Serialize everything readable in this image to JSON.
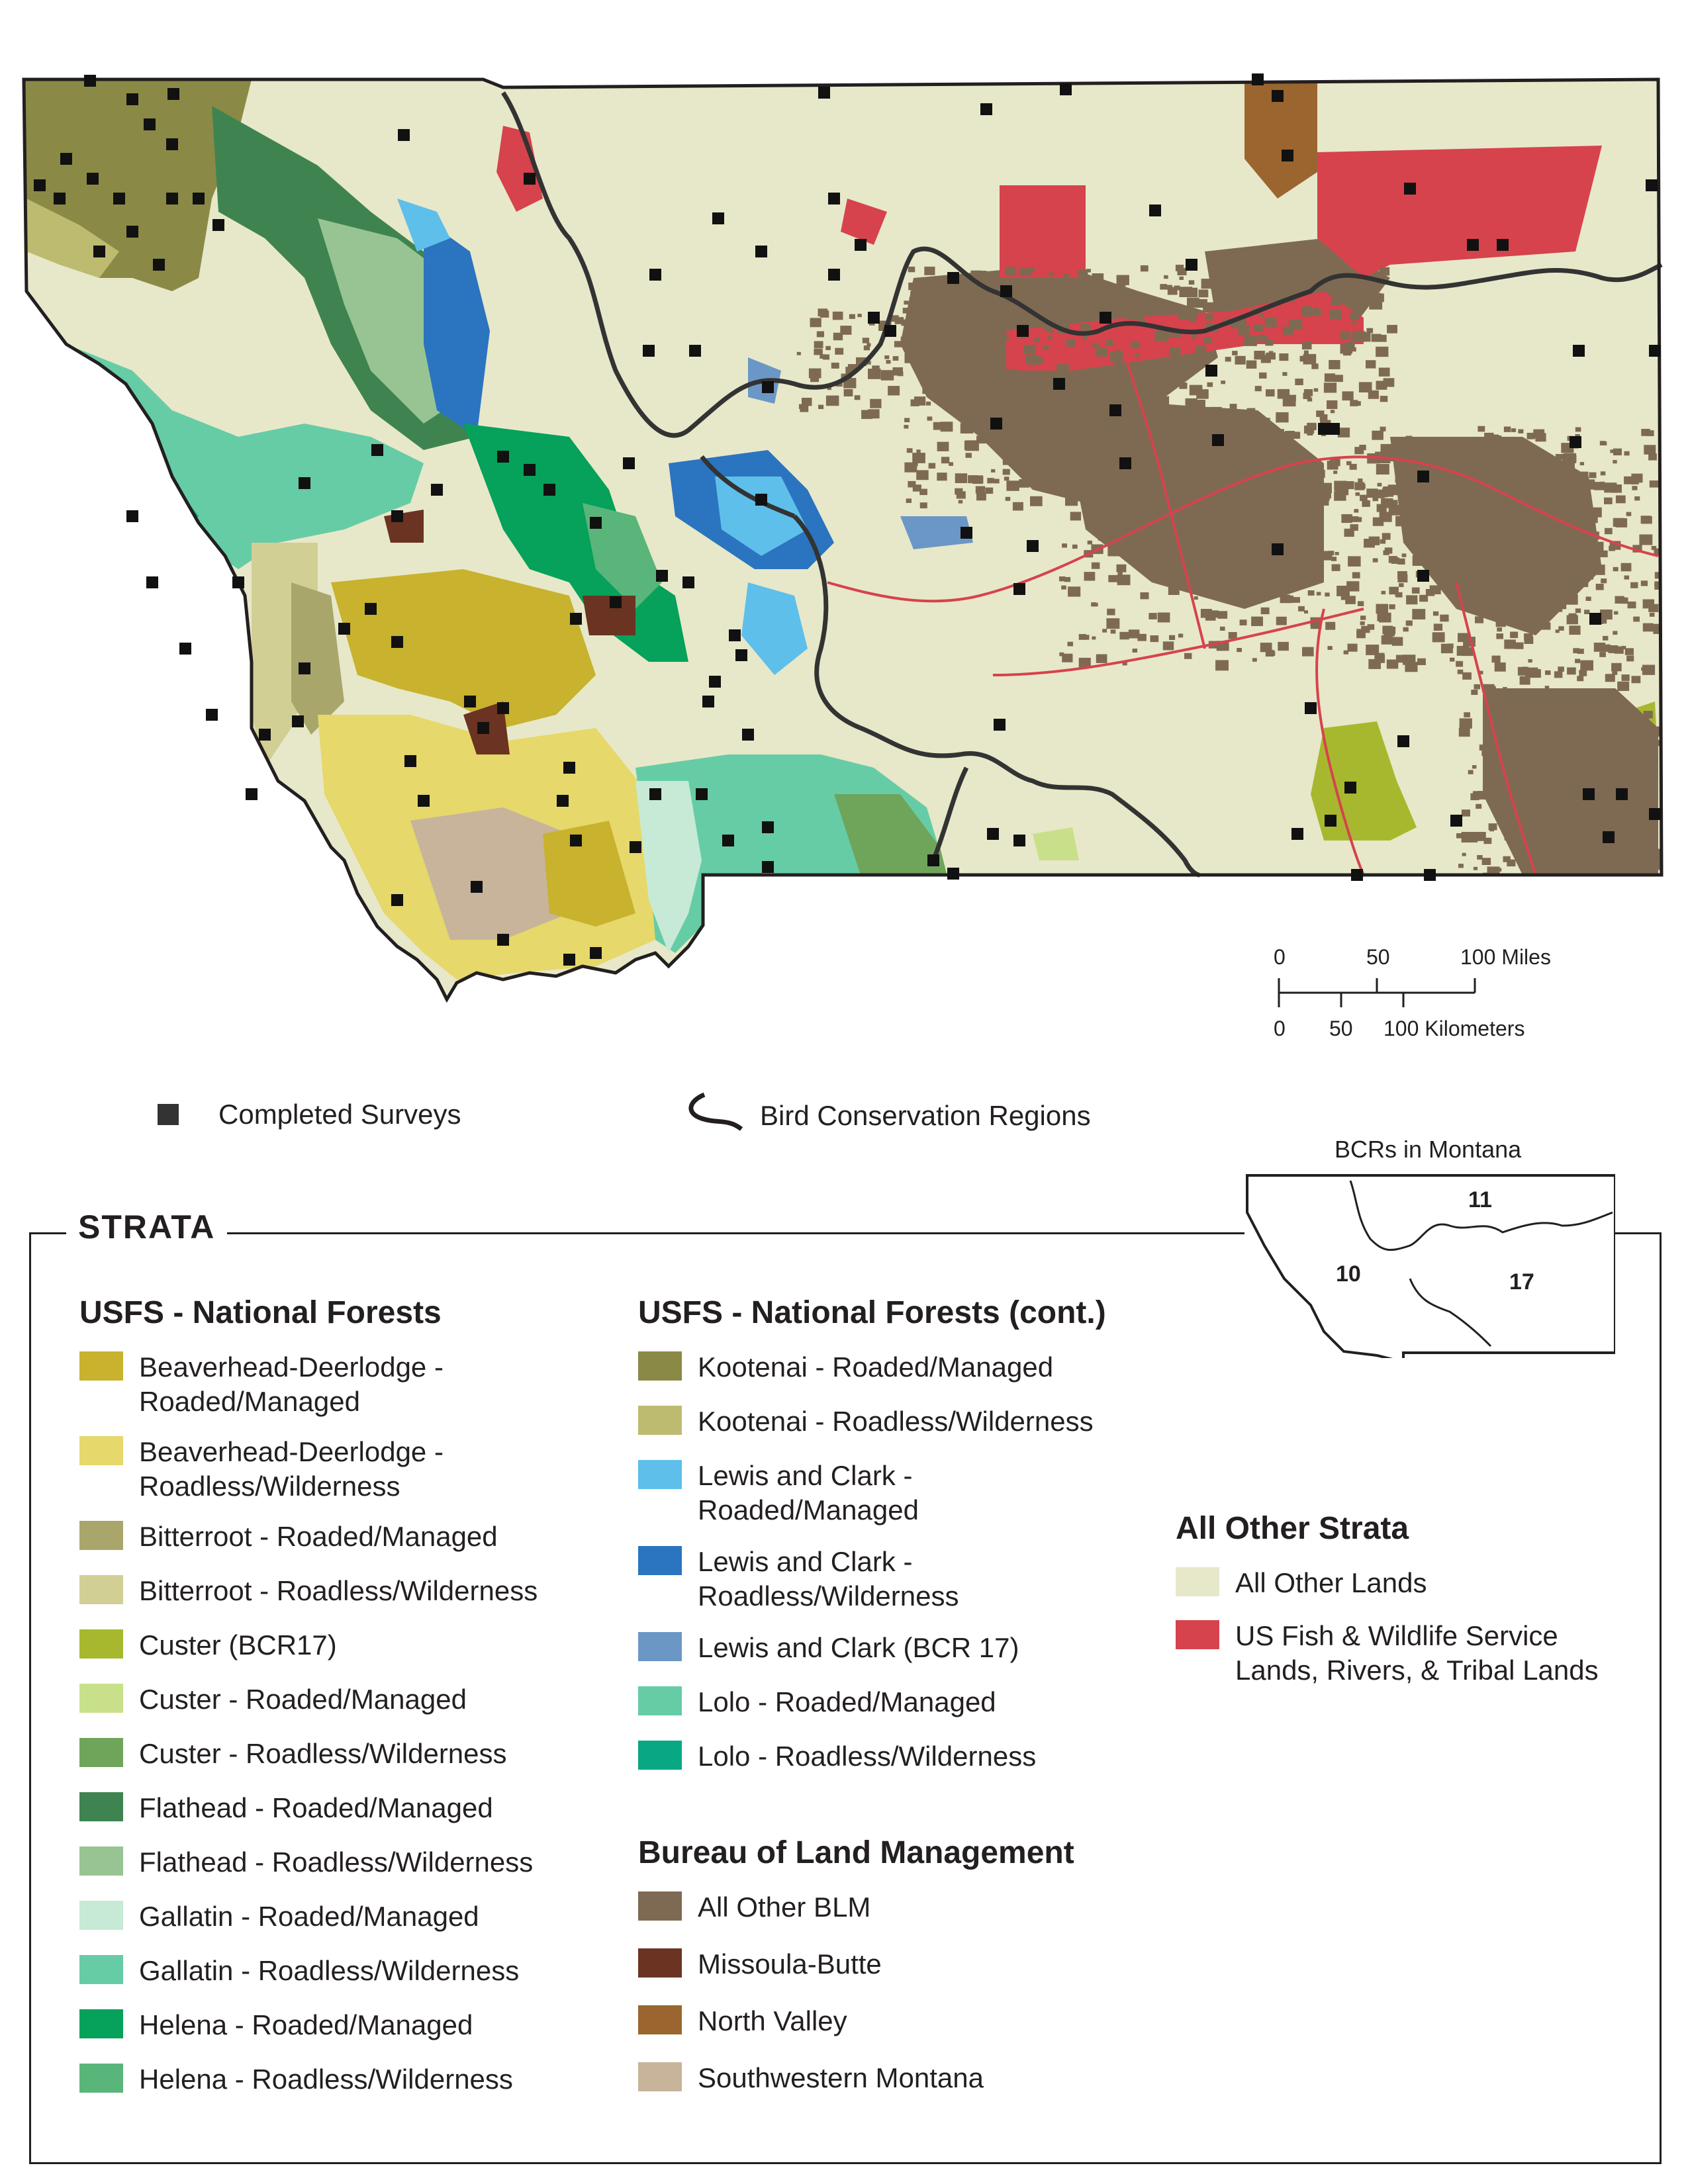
{
  "scale_bar": {
    "miles_ticks": [
      "0",
      "50",
      "100 Miles"
    ],
    "km_ticks": [
      "0",
      "50",
      "100 Kilometers"
    ]
  },
  "top_legend": {
    "surveys_label": "Completed Surveys",
    "bcr_label": "Bird Conservation Regions"
  },
  "strata": {
    "title": "STRATA",
    "usfs_heading": "USFS - National Forests",
    "usfs_items": [
      {
        "label_lines": [
          "Beaverhead-Deerlodge -",
          "Roaded/Managed"
        ],
        "color": "#c8b22e"
      },
      {
        "label_lines": [
          "Beaverhead-Deerlodge -",
          "Roadless/Wilderness"
        ],
        "color": "#e6d86a"
      },
      {
        "label_lines": [
          "Bitterroot - Roaded/Managed"
        ],
        "color": "#a9a66c"
      },
      {
        "label_lines": [
          "Bitterroot - Roadless/Wilderness"
        ],
        "color": "#d2cf95"
      },
      {
        "label_lines": [
          "Custer (BCR17)"
        ],
        "color": "#a8b82e"
      },
      {
        "label_lines": [
          "Custer - Roaded/Managed"
        ],
        "color": "#c8e08a"
      },
      {
        "label_lines": [
          "Custer - Roadless/Wilderness"
        ],
        "color": "#6fa55a"
      },
      {
        "label_lines": [
          "Flathead - Roaded/Managed"
        ],
        "color": "#3f8450"
      },
      {
        "label_lines": [
          "Flathead - Roadless/Wilderness"
        ],
        "color": "#98c493"
      },
      {
        "label_lines": [
          "Gallatin - Roaded/Managed"
        ],
        "color": "#c6ead5"
      },
      {
        "label_lines": [
          "Gallatin - Roadless/Wilderness"
        ],
        "color": "#66cca6"
      },
      {
        "label_lines": [
          "Helena - Roaded/Managed"
        ],
        "color": "#06a15a"
      },
      {
        "label_lines": [
          "Helena - Roadless/Wilderness"
        ],
        "color": "#5ab57a"
      }
    ],
    "usfs_cont_heading": "USFS - National Forests (cont.)",
    "usfs_cont_items": [
      {
        "label_lines": [
          "Kootenai - Roaded/Managed"
        ],
        "color": "#8a8a46"
      },
      {
        "label_lines": [
          "Kootenai - Roadless/Wilderness"
        ],
        "color": "#bdbb70"
      },
      {
        "label_lines": [
          "Lewis and Clark -",
          "Roaded/Managed"
        ],
        "color": "#5ebfea"
      },
      {
        "label_lines": [
          "Lewis and Clark -",
          "Roadless/Wilderness"
        ],
        "color": "#2b74c0"
      },
      {
        "label_lines": [
          "Lewis and Clark (BCR 17)"
        ],
        "color": "#6b97c6"
      },
      {
        "label_lines": [
          "Lolo - Roaded/Managed"
        ],
        "color": "#66cca6"
      },
      {
        "label_lines": [
          "Lolo - Roadless/Wilderness"
        ],
        "color": "#09a884"
      }
    ],
    "blm_heading": "Bureau of Land Management",
    "blm_items": [
      {
        "label_lines": [
          "All Other BLM"
        ],
        "color": "#7e6a52"
      },
      {
        "label_lines": [
          "Missoula-Butte"
        ],
        "color": "#6b3322"
      },
      {
        "label_lines": [
          "North Valley"
        ],
        "color": "#9b6530"
      },
      {
        "label_lines": [
          "Southwestern Montana"
        ],
        "color": "#c7b49b"
      }
    ],
    "other_heading": "All Other Strata",
    "other_items": [
      {
        "label_lines": [
          "All Other Lands"
        ],
        "color": "#e7e8c9"
      },
      {
        "label_lines": [
          "US Fish & Wildlife Service",
          "Lands, Rivers, & Tribal Lands"
        ],
        "color": "#d6434d"
      }
    ]
  },
  "inset": {
    "title": "BCRs in Montana",
    "labels": [
      "10",
      "11",
      "17"
    ]
  }
}
